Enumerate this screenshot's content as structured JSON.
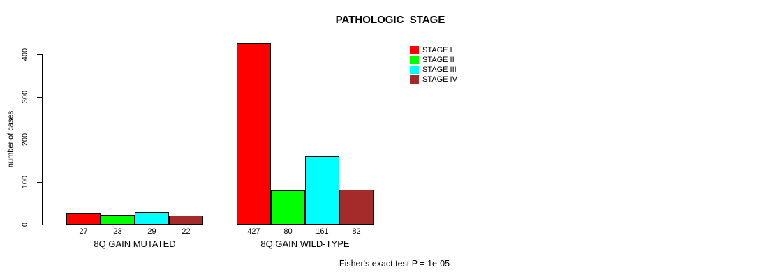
{
  "title": "PATHOLOGIC_STAGE",
  "y_axis": {
    "label": "number of cases"
  },
  "footer": "Fisher's exact test P = 1e-05",
  "legend": {
    "items": [
      {
        "label": "STAGE I",
        "color": "#FF0000"
      },
      {
        "label": "STAGE II",
        "color": "#00FF00"
      },
      {
        "label": "STAGE III",
        "color": "#00FFFF"
      },
      {
        "label": "STAGE IV",
        "color": "#A52A2A"
      }
    ]
  },
  "chart_data": {
    "type": "bar",
    "title": "PATHOLOGIC_STAGE",
    "xlabel": "",
    "ylabel": "number of cases",
    "ylim": [
      0,
      400
    ],
    "yticks": [
      0,
      100,
      200,
      300,
      400
    ],
    "grid": false,
    "legend_position": "top-right",
    "categories": [
      "8Q GAIN MUTATED",
      "8Q GAIN WILD-TYPE"
    ],
    "series": [
      {
        "name": "STAGE I",
        "color": "#FF0000",
        "values": [
          27,
          427
        ]
      },
      {
        "name": "STAGE II",
        "color": "#00FF00",
        "values": [
          23,
          80
        ]
      },
      {
        "name": "STAGE III",
        "color": "#00FFFF",
        "values": [
          29,
          161
        ]
      },
      {
        "name": "STAGE IV",
        "color": "#A52A2A",
        "values": [
          22,
          82
        ]
      }
    ],
    "bar_value_labels": [
      [
        27,
        23,
        29,
        22
      ],
      [
        427,
        80,
        161,
        82
      ]
    ],
    "annotation": "Fisher's exact test P = 1e-05"
  }
}
